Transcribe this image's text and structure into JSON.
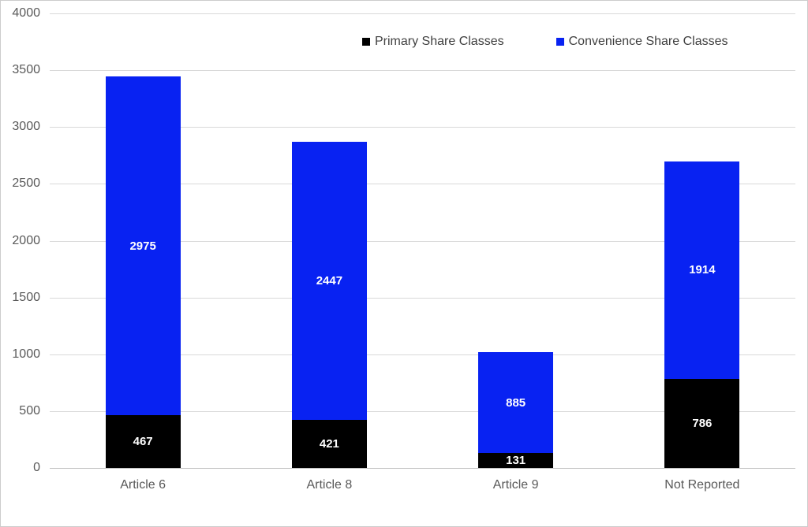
{
  "chart_data": {
    "type": "bar",
    "stacked": true,
    "title": "",
    "xlabel": "",
    "ylabel": "",
    "categories": [
      "Article 6",
      "Article 8",
      "Article 9",
      "Not Reported"
    ],
    "series": [
      {
        "name": "Primary Share Classes",
        "color": "#000000",
        "values": [
          467,
          421,
          131,
          786
        ]
      },
      {
        "name": "Convenience Share Classes",
        "color": "#0822f2",
        "values": [
          2975,
          2447,
          885,
          1914
        ]
      }
    ],
    "totals": [
      3442,
      2868,
      1016,
      2700
    ],
    "ylim": [
      0,
      4000
    ],
    "yticks": [
      0,
      500,
      1000,
      1500,
      2000,
      2500,
      3000,
      3500,
      4000
    ],
    "grid": true,
    "legend_position": "top",
    "data_labels": true,
    "data_label_color": "#ffffff"
  },
  "colors": {
    "gridline": "#d9d9d9",
    "axis_line": "#bfbfbf",
    "axis_text": "#595959",
    "legend_text": "#404040",
    "frame_border": "#cccccc",
    "background": "#ffffff"
  }
}
